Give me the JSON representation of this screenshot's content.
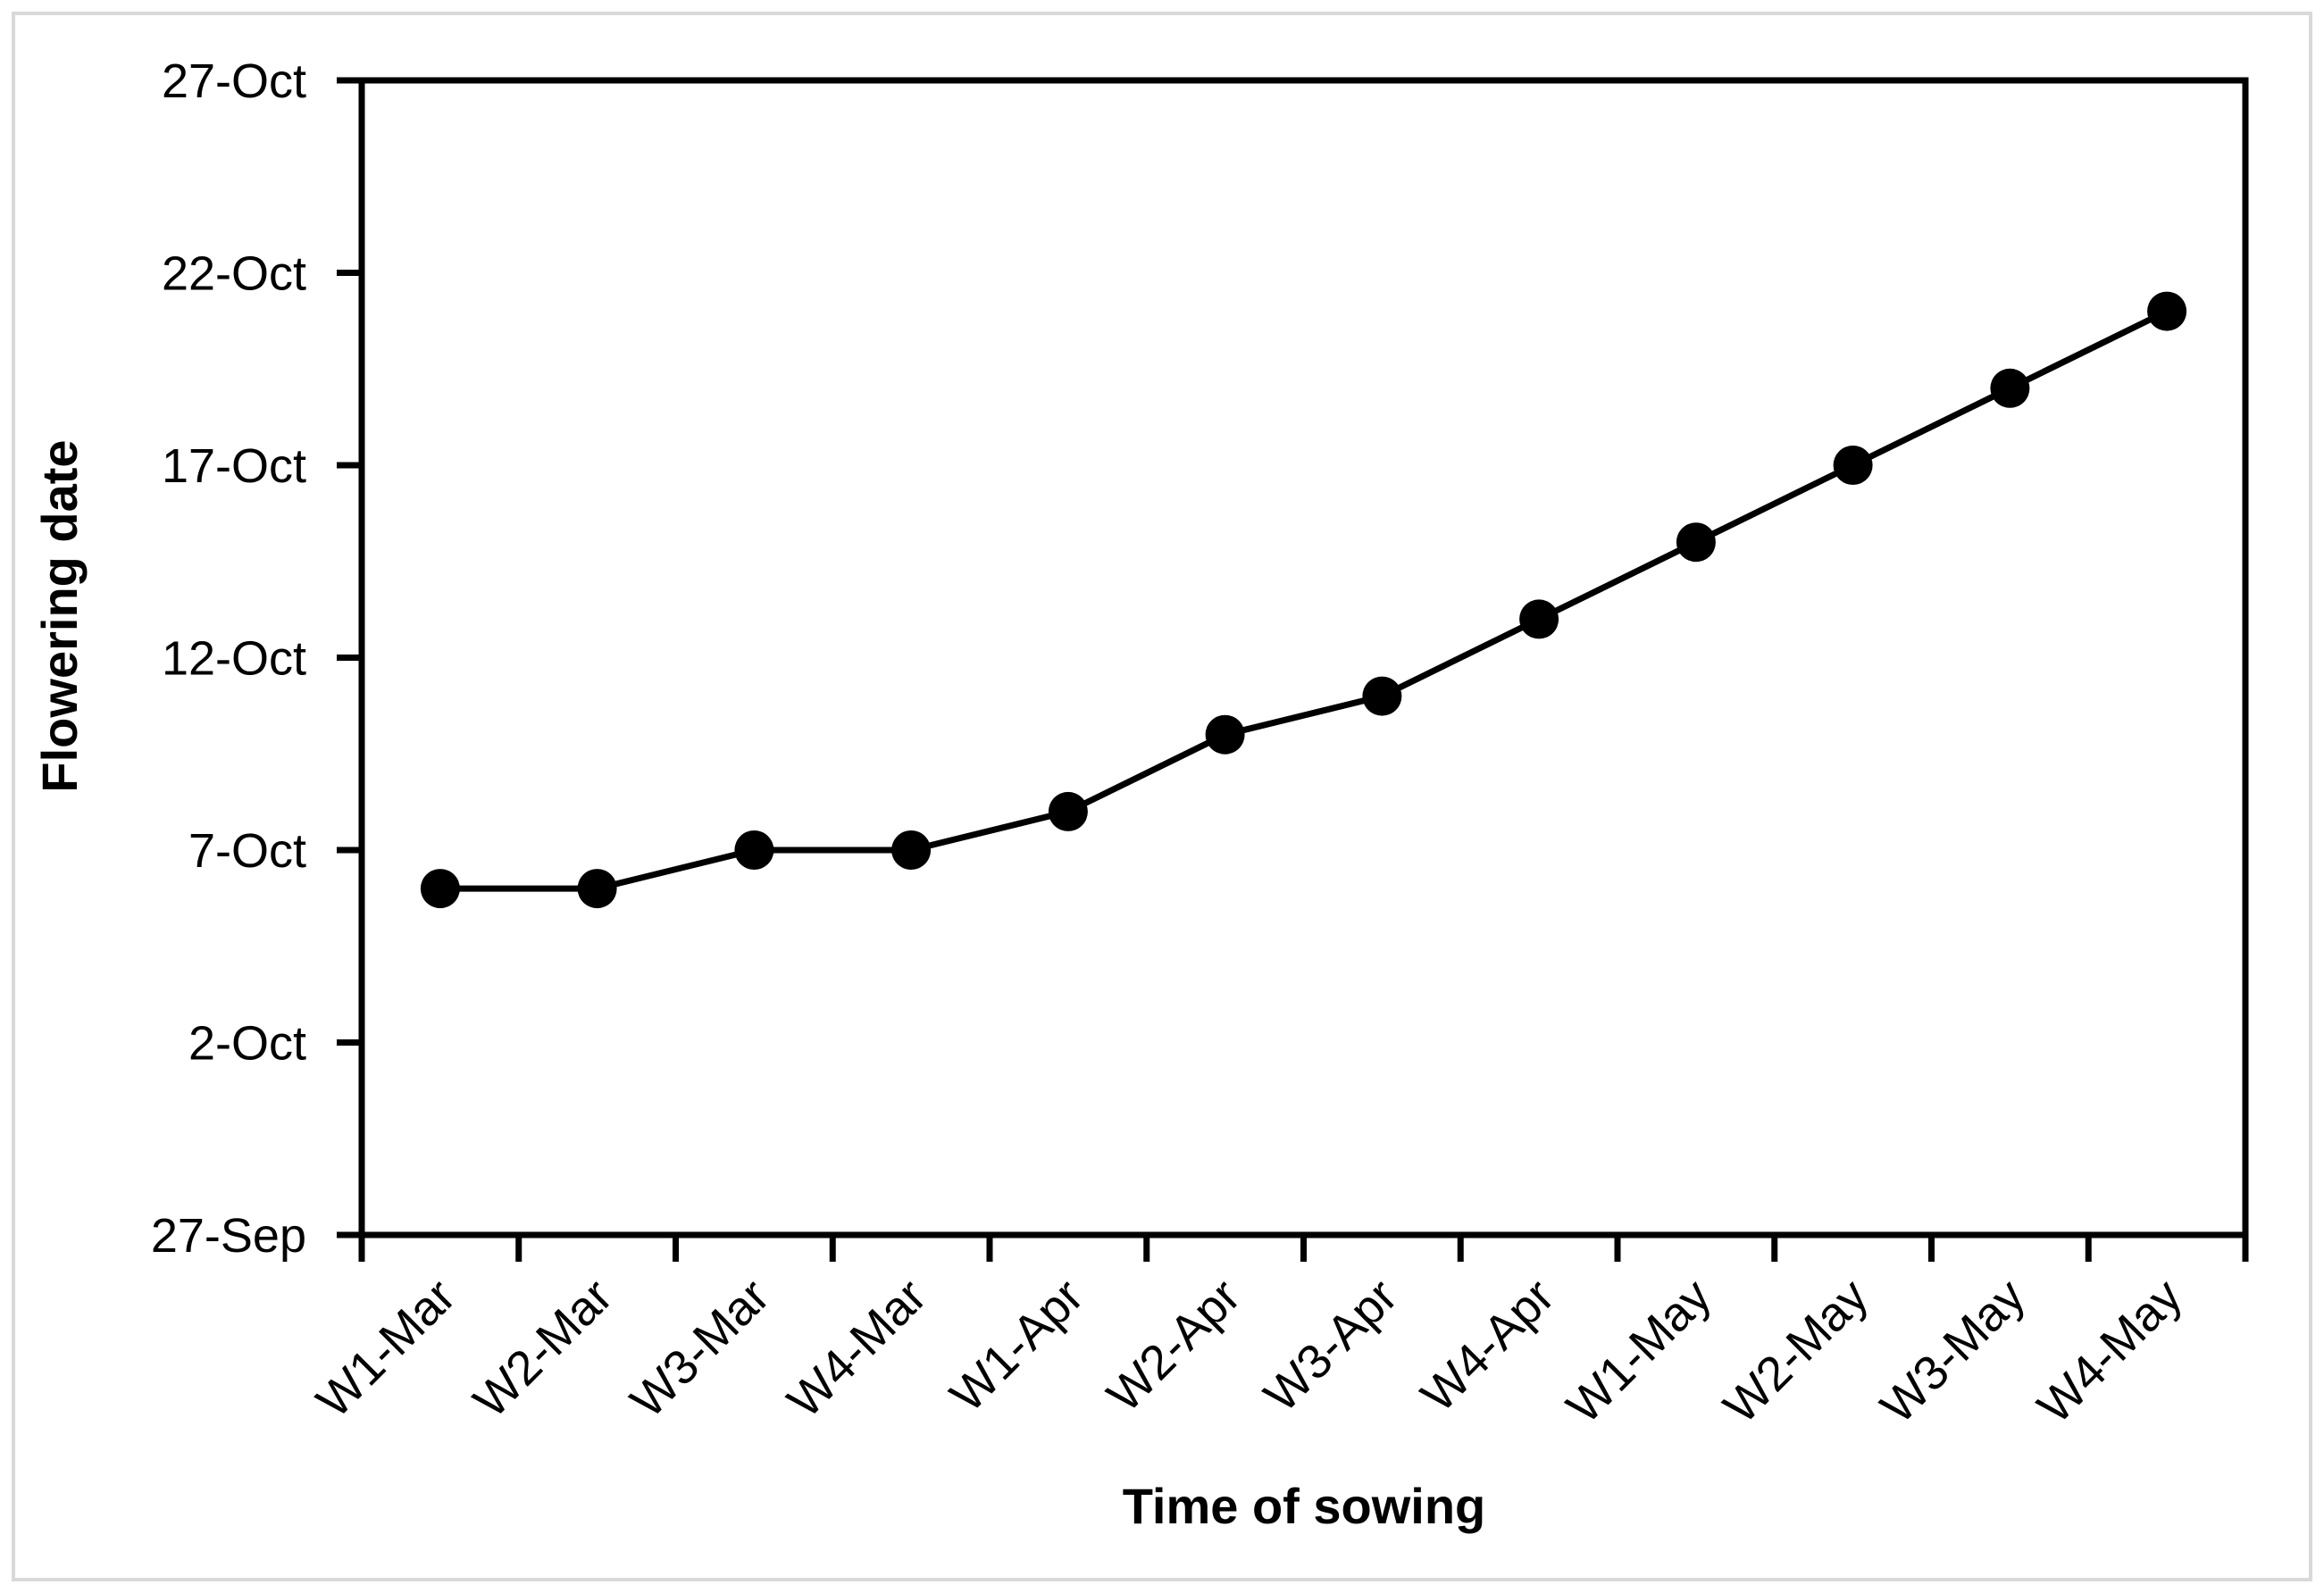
{
  "figure": {
    "background": "#ffffff",
    "border_color": "#d9d9d9"
  },
  "chart_data": {
    "type": "line",
    "title": "",
    "xlabel": "Time of sowing",
    "ylabel": "Flowering date",
    "categories": [
      "W1-Mar",
      "W2-Mar",
      "W3-Mar",
      "W4-Mar",
      "W1-Apr",
      "W2-Apr",
      "W3-Apr",
      "W4-Apr",
      "W1-May",
      "W2-May",
      "W3-May",
      "W4-May"
    ],
    "series": [
      {
        "name": "Flowering date",
        "value_labels": [
          "6-Oct",
          "6-Oct",
          "7-Oct",
          "7-Oct",
          "8-Oct",
          "10-Oct",
          "11-Oct",
          "13-Oct",
          "15-Oct",
          "17-Oct",
          "19-Oct",
          "21-Oct"
        ],
        "values_days_after_27sep": [
          9,
          9,
          10,
          10,
          11,
          13,
          14,
          16,
          18,
          20,
          22,
          24
        ]
      }
    ],
    "y_axis": {
      "tick_labels": [
        "27-Sep",
        "2-Oct",
        "7-Oct",
        "12-Oct",
        "17-Oct",
        "22-Oct",
        "27-Oct"
      ],
      "tick_days_after_27sep": [
        0,
        5,
        10,
        15,
        20,
        25,
        30
      ],
      "range_days": [
        0,
        30
      ],
      "range_dates": [
        "27-Sep",
        "27-Oct"
      ]
    },
    "x_axis": {
      "boundary_tick_count": 13,
      "label_rotation_deg": -45
    },
    "grid": false,
    "legend": false,
    "marker": {
      "shape": "circle",
      "color": "#000000"
    },
    "line_color": "#000000",
    "axis_color": "#000000"
  }
}
